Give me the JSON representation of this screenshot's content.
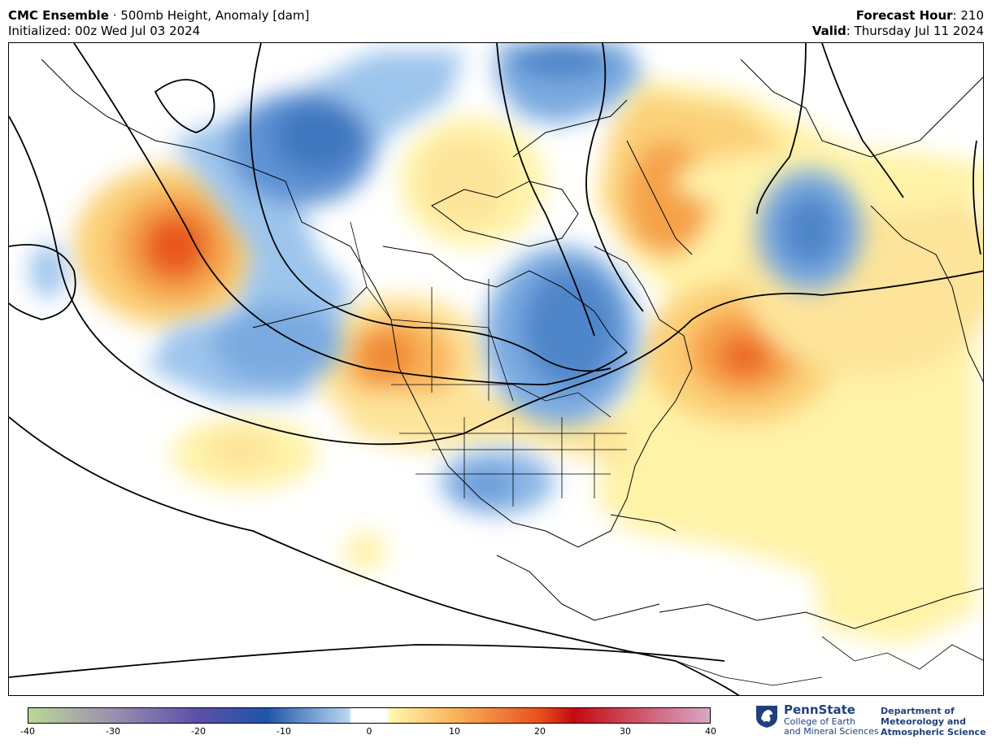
{
  "header": {
    "model": "CMC Ensemble",
    "separator": " · ",
    "product": "500mb Height, Anomaly [dam]",
    "initialized_label": "Initialized:",
    "initialized_value": " 00z Wed Jul 03 2024",
    "forecast_hour_label": "Forecast Hour",
    "forecast_hour_value": ": 210",
    "valid_label": "Valid",
    "valid_value": ": Thursday Jul 11 2024"
  },
  "map": {
    "region": "North America / North Atlantic / North Pacific",
    "field": "500mb height anomaly (shaded), 500mb height (contours)"
  },
  "colorbar": {
    "min": -40,
    "max": 40,
    "ticks": [
      "-40",
      "-30",
      "-20",
      "-10",
      "0",
      "10",
      "20",
      "30",
      "40"
    ],
    "colors": {
      "neg40": "#bcd896",
      "neg30": "#9a8fb0",
      "neg20": "#5b4fa8",
      "neg12": "#1f55a8",
      "neg2": "#b8d6f2",
      "zero": "#ffffff",
      "pos2": "#fff7b0",
      "pos10": "#f9b45a",
      "pos20": "#e8501e",
      "pos25": "#c40a12",
      "pos40": "#d8a8c8"
    }
  },
  "branding": {
    "university": "PennState",
    "college_line1": "College of Earth",
    "college_line2": "and Mineral Sciences",
    "dept_line1": "Department of",
    "dept_line2": "Meteorology and",
    "dept_line3": "Atmospheric Science",
    "brand_color": "#1e407c"
  }
}
